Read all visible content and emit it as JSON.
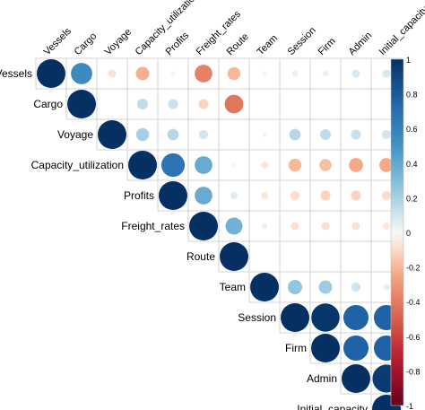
{
  "chart_data": {
    "type": "heatmap",
    "style": "correlation-matrix-upper-circles",
    "variables": [
      "Vessels",
      "Cargo",
      "Voyage",
      "Capacity_utilization",
      "Profits",
      "Freight_rates",
      "Route",
      "Team",
      "Session",
      "Firm",
      "Admin",
      "Initial_capacity"
    ],
    "matrix": [
      [
        1,
        0.55,
        -0.08,
        -0.22,
        -0.02,
        -0.38,
        -0.2,
        -0.02,
        0.04,
        0.04,
        0.08,
        0.08
      ],
      [
        null,
        1,
        null,
        0.14,
        0.12,
        -0.12,
        -0.42,
        null,
        null,
        null,
        null,
        null
      ],
      [
        null,
        null,
        1,
        0.2,
        0.16,
        0.1,
        null,
        0.02,
        0.16,
        0.14,
        0.12,
        0.1
      ],
      [
        null,
        null,
        null,
        1,
        0.67,
        0.38,
        -0.02,
        -0.06,
        -0.2,
        -0.18,
        -0.24,
        -0.24
      ],
      [
        null,
        null,
        null,
        null,
        1,
        0.38,
        0.06,
        -0.06,
        -0.1,
        -0.12,
        -0.12,
        -0.1
      ],
      [
        null,
        null,
        null,
        null,
        null,
        1,
        0.35,
        -0.04,
        -0.08,
        -0.08,
        -0.08,
        -0.06
      ],
      [
        null,
        null,
        null,
        null,
        null,
        null,
        1,
        null,
        null,
        null,
        null,
        null
      ],
      [
        null,
        null,
        null,
        null,
        null,
        null,
        null,
        1,
        0.25,
        0.22,
        0.1,
        0.05
      ],
      [
        null,
        null,
        null,
        null,
        null,
        null,
        null,
        null,
        1,
        0.97,
        0.77,
        0.77
      ],
      [
        null,
        null,
        null,
        null,
        null,
        null,
        null,
        null,
        null,
        1,
        0.77,
        0.77
      ],
      [
        null,
        null,
        null,
        null,
        null,
        null,
        null,
        null,
        null,
        null,
        1,
        0.95
      ],
      [
        null,
        null,
        null,
        null,
        null,
        null,
        null,
        null,
        null,
        null,
        null,
        1
      ]
    ],
    "colorbar": {
      "min": -1,
      "max": 1,
      "ticks": [
        "1",
        "0.8",
        "0.6",
        "0.4",
        "0.2",
        "0",
        "-0.2",
        "-0.4",
        "-0.6",
        "-0.8",
        "-1"
      ]
    },
    "colors": {
      "strong_positive": "#053061",
      "neutral": "#f7f7f7",
      "strong_negative": "#67001f",
      "grid": "#d3d3d3"
    }
  }
}
